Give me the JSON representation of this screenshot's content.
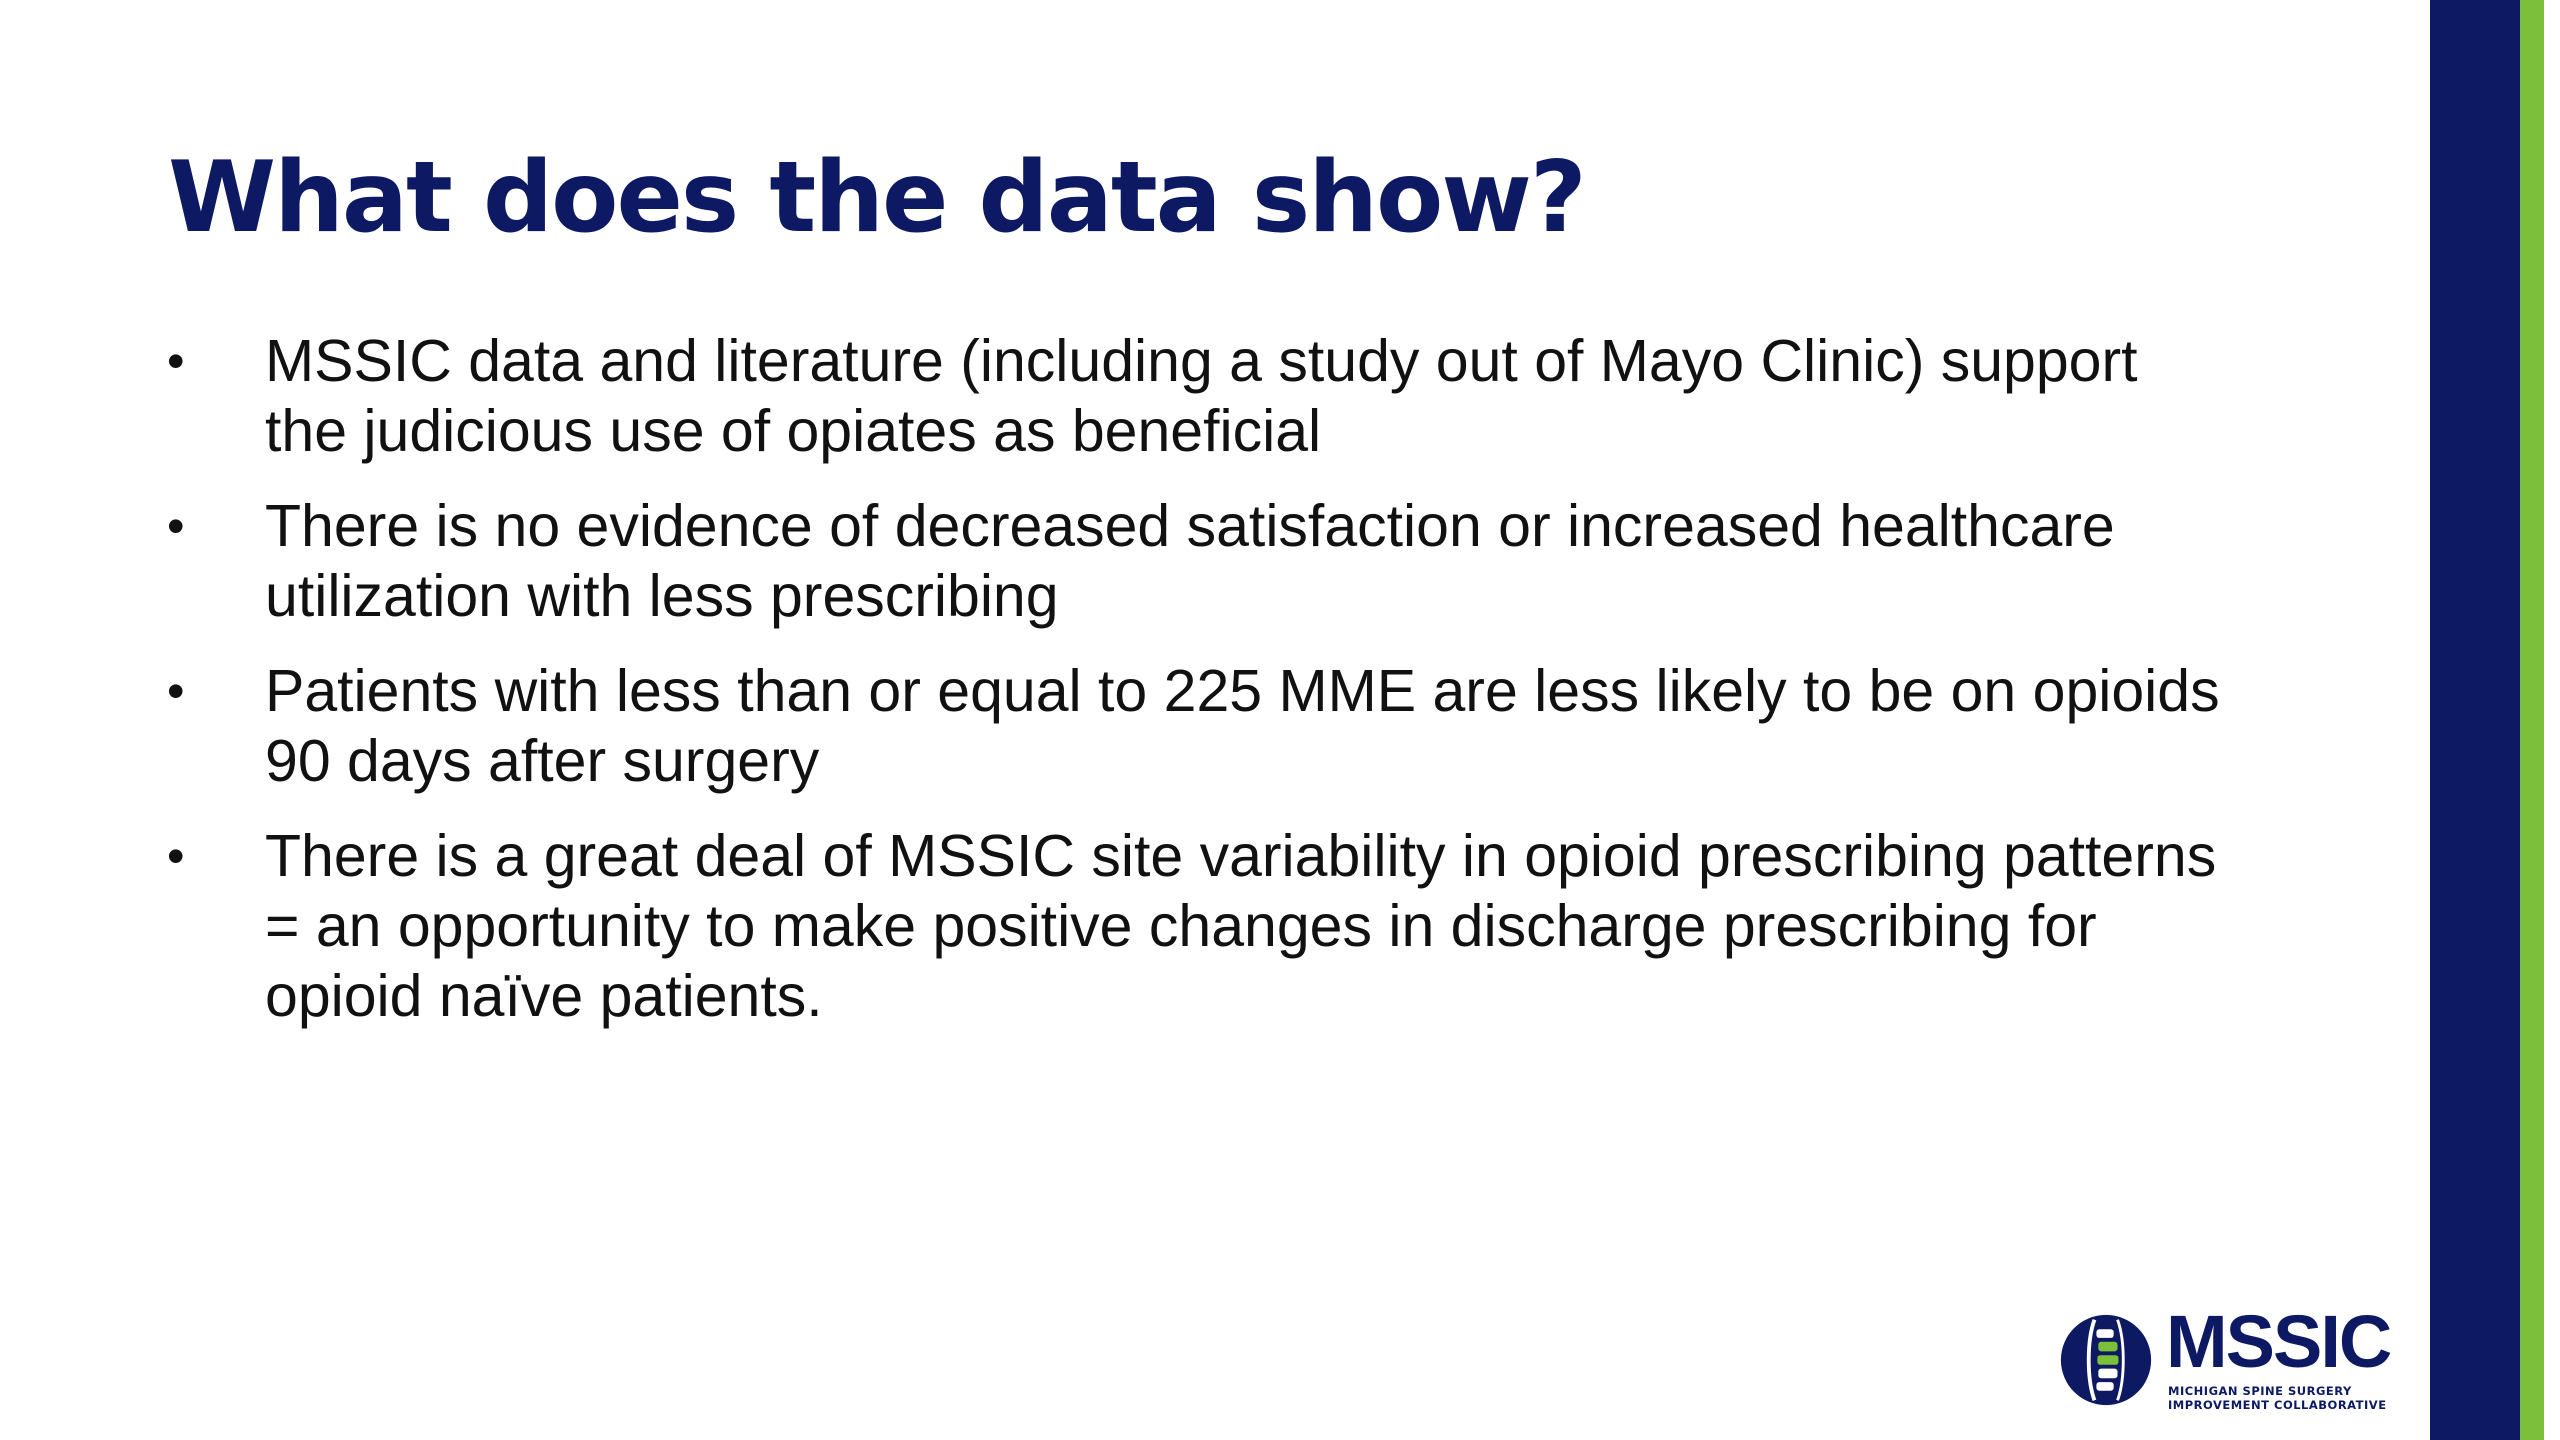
{
  "slide": {
    "title": "What does the data show?",
    "bullet_symbol": "•",
    "bullets": [
      {
        "line1": "MSSIC data and literature (including a study out of Mayo Clinic) support",
        "line2": "the judicious use of opiates as beneficial"
      },
      {
        "line1": "There is no evidence of decreased satisfaction or increased healthcare",
        "line2": "utilization with less prescribing"
      },
      {
        "line1": "Patients with less than or equal to 225 MME are less likely to be on opioids",
        "line2": "90 days after surgery"
      },
      {
        "line1": "There is a great deal of MSSIC site variability in opioid prescribing patterns",
        "line2": "= an opportunity to make positive changes in discharge prescribing for",
        "line3": "opioid naïve patients."
      }
    ]
  },
  "logo": {
    "name": "MSSIC",
    "subtitle_line1": "MICHIGAN SPINE SURGERY",
    "subtitle_line2": "IMPROVEMENT COLLABORATIVE",
    "icon": "spine-globe-icon"
  },
  "colors": {
    "title": "#0d1a63",
    "accent_navy": "#0d1a63",
    "accent_green": "#7bbf3a",
    "text": "#111111"
  }
}
